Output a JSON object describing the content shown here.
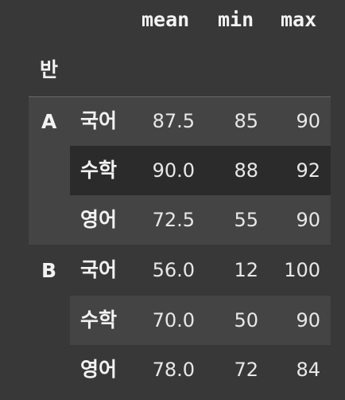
{
  "table": {
    "columns": [
      "mean",
      "min",
      "max"
    ],
    "index_name": "반",
    "groups": [
      {
        "label": "A",
        "rows": [
          {
            "subject": "국어",
            "mean": "87.5",
            "min": "85",
            "max": "90"
          },
          {
            "subject": "수학",
            "mean": "90.0",
            "min": "88",
            "max": "92"
          },
          {
            "subject": "영어",
            "mean": "72.5",
            "min": "55",
            "max": "90"
          }
        ]
      },
      {
        "label": "B",
        "rows": [
          {
            "subject": "국어",
            "mean": "56.0",
            "min": "12",
            "max": "100"
          },
          {
            "subject": "수학",
            "mean": "70.0",
            "min": "50",
            "max": "90"
          },
          {
            "subject": "영어",
            "mean": "78.0",
            "min": "72",
            "max": "84"
          }
        ]
      }
    ]
  },
  "colors": {
    "background": "#383838",
    "stripe_light": "#444444",
    "stripe_dark": "#2b2b2b",
    "text": "#ececec"
  }
}
